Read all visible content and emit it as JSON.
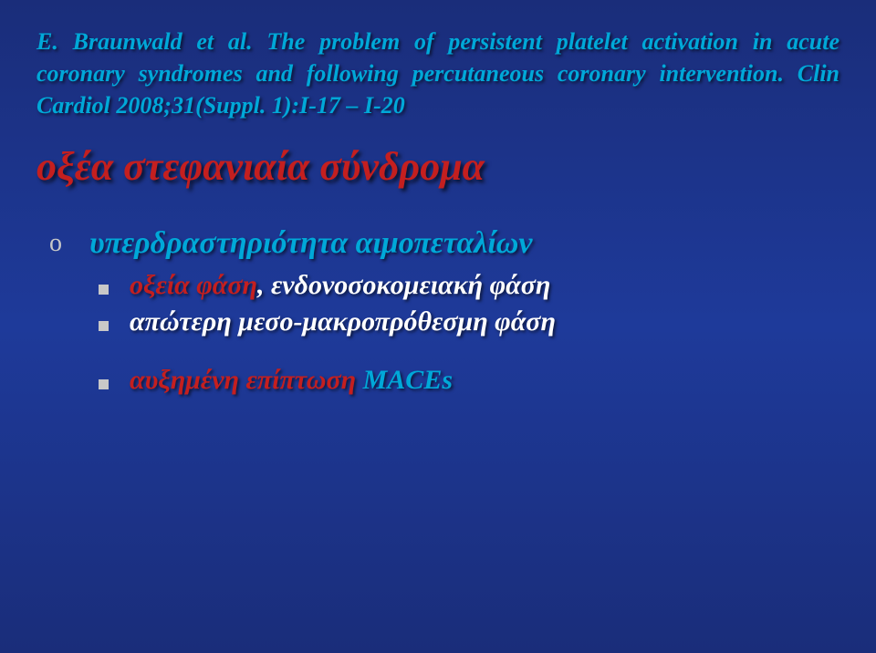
{
  "colors": {
    "background_top": "#1a2d7a",
    "background_mid": "#1e3a9a",
    "citation_blue": "#00a8d8",
    "title_red": "#c41f1f",
    "sub_white": "#ffffff",
    "bullet_gray": "#c8c8c8"
  },
  "typography": {
    "citation_fontsize": 26,
    "title_fontsize": 44,
    "heading_fontsize": 34,
    "sub_fontsize": 30,
    "font_family": "Georgia, Times New Roman, serif",
    "font_style": "italic",
    "font_weight": "bold"
  },
  "citation": {
    "text": "E. Braunwald et al. The problem of persistent platelet activation in acute coronary syndromes and following percutaneous coronary intervention. Clin Cardiol 2008;31(Suppl. 1):I-17 – I-20"
  },
  "title": "οξέα στεφανιαία σύνδρομα",
  "main_bullet": "υπερδραστηριότητα αιμοπεταλίων",
  "sub_items": [
    {
      "lead": "οξεία φάση",
      "rest": ", ενδονοσοκομειακή φάση"
    },
    {
      "lead": "",
      "rest": "απώτερη μεσο-μακροπρόθεσμη φάση"
    }
  ],
  "conclusion": {
    "red_part": "αυξημένη επίπτωση ",
    "blue_part": "MACEs"
  }
}
